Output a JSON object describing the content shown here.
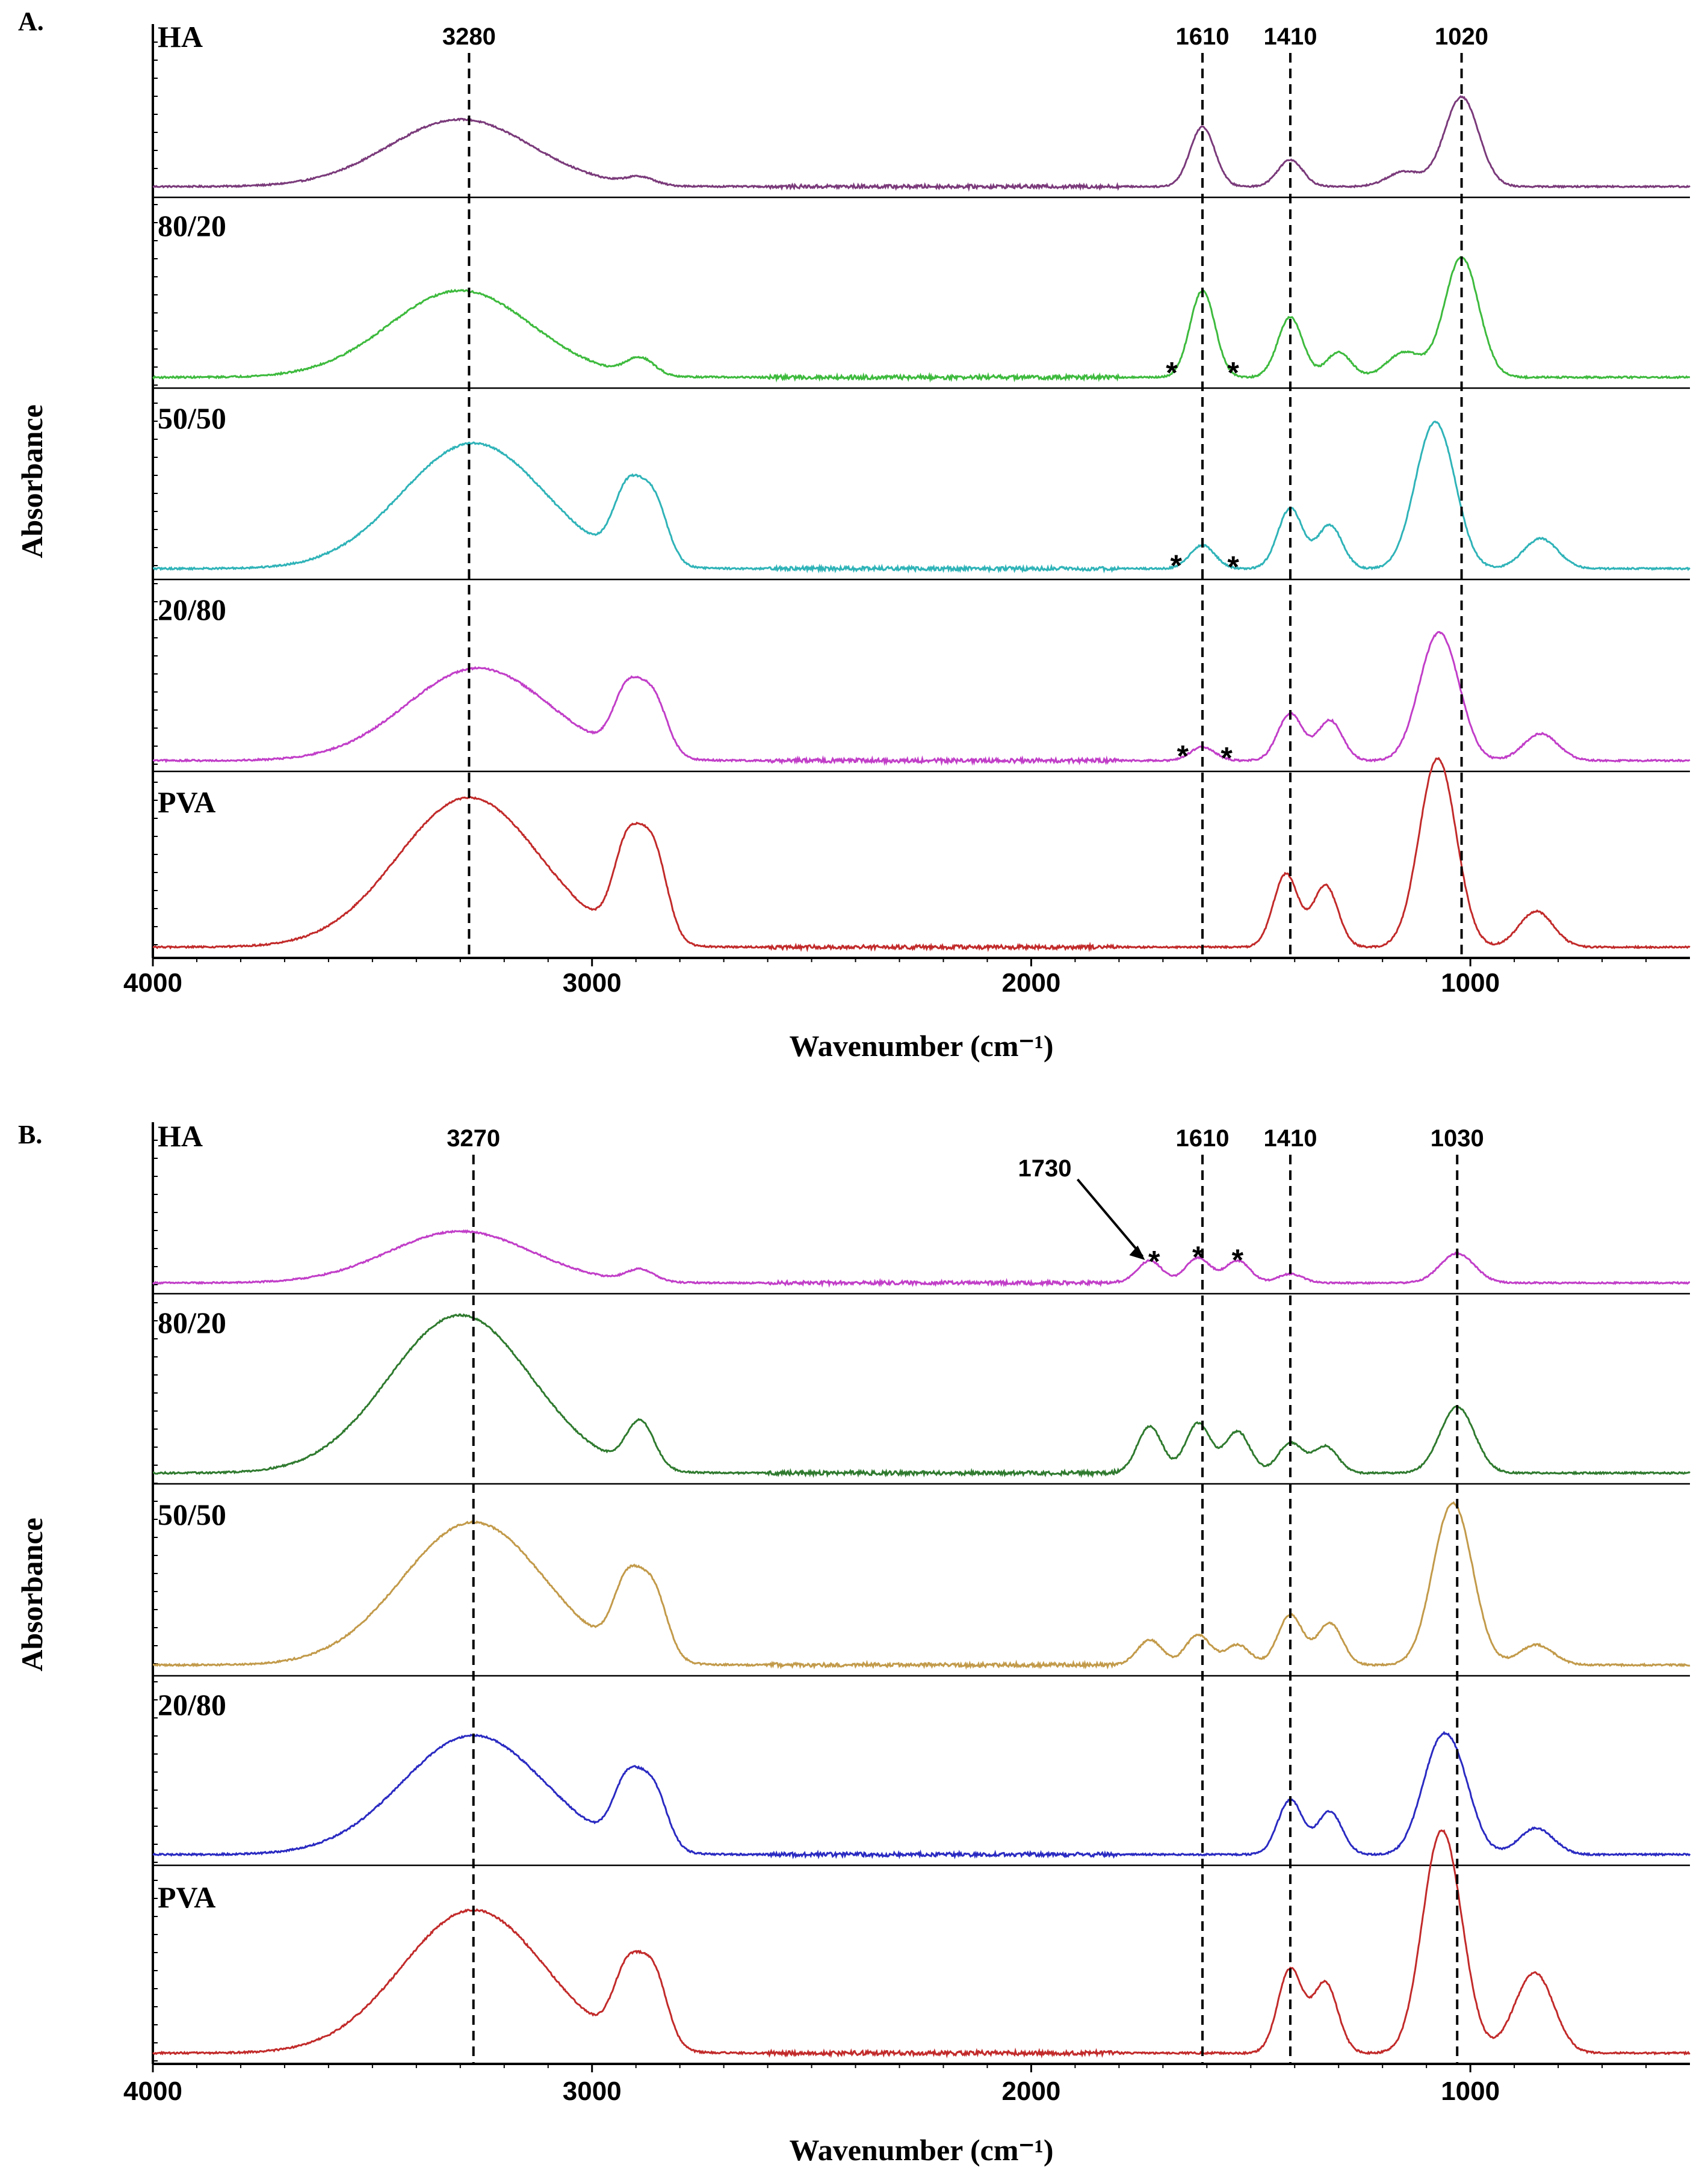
{
  "chart_data": [
    {
      "panel": "A.",
      "type": "line",
      "xlabel": "Wavenumber (cm⁻¹)",
      "ylabel": "Absorbance",
      "xlim": [
        4000,
        500
      ],
      "xticks": [
        4000,
        3000,
        2000,
        1000
      ],
      "xtick_labels": [
        "4000",
        "3000",
        "2000",
        "1000"
      ],
      "reference_lines": [
        {
          "label": "3280",
          "x": 3280
        },
        {
          "label": "1610",
          "x": 1610
        },
        {
          "label": "1410",
          "x": 1410
        },
        {
          "label": "1020",
          "x": 1020
        }
      ],
      "annotations": [
        {
          "text": "*",
          "x": 1680,
          "series": "80/20"
        },
        {
          "text": "*",
          "x": 1540,
          "series": "80/20"
        },
        {
          "text": "*",
          "x": 1670,
          "series": "50/50"
        },
        {
          "text": "*",
          "x": 1540,
          "series": "50/50"
        },
        {
          "text": "*",
          "x": 1655,
          "series": "20/80"
        },
        {
          "text": "*",
          "x": 1555,
          "series": "20/80"
        }
      ],
      "series": [
        {
          "name": "HA",
          "color": "#7a3a7a",
          "peaks": [
            [
              3300,
              0.45
            ],
            [
              2890,
              0.05
            ],
            [
              1610,
              0.4
            ],
            [
              1410,
              0.18
            ],
            [
              1150,
              0.1
            ],
            [
              1020,
              0.6
            ]
          ]
        },
        {
          "name": "80/20",
          "color": "#3dba3d",
          "peaks": [
            [
              3300,
              0.52
            ],
            [
              2890,
              0.1
            ],
            [
              1610,
              0.52
            ],
            [
              1410,
              0.36
            ],
            [
              1300,
              0.15
            ],
            [
              1150,
              0.15
            ],
            [
              1020,
              0.72
            ]
          ]
        },
        {
          "name": "50/50",
          "color": "#2fb3b8",
          "peaks": [
            [
              3270,
              0.75
            ],
            [
              2920,
              0.4
            ],
            [
              2860,
              0.38
            ],
            [
              1610,
              0.14
            ],
            [
              1410,
              0.36
            ],
            [
              1320,
              0.26
            ],
            [
              1100,
              0.5
            ],
            [
              1060,
              0.5
            ],
            [
              840,
              0.18
            ]
          ]
        },
        {
          "name": "20/80",
          "color": "#c13ec8",
          "peaks": [
            [
              3260,
              0.55
            ],
            [
              2920,
              0.36
            ],
            [
              2860,
              0.34
            ],
            [
              1610,
              0.08
            ],
            [
              1410,
              0.28
            ],
            [
              1320,
              0.24
            ],
            [
              1090,
              0.45
            ],
            [
              1050,
              0.42
            ],
            [
              840,
              0.16
            ]
          ]
        },
        {
          "name": "PVA",
          "color": "#c22a2a",
          "peaks": [
            [
              3280,
              0.92
            ],
            [
              2920,
              0.55
            ],
            [
              2860,
              0.55
            ],
            [
              1420,
              0.45
            ],
            [
              1330,
              0.38
            ],
            [
              1090,
              0.6
            ],
            [
              1060,
              0.65
            ],
            [
              850,
              0.22
            ]
          ]
        }
      ]
    },
    {
      "panel": "B.",
      "type": "line",
      "xlabel": "Wavenumber (cm⁻¹)",
      "ylabel": "Absorbance",
      "xlim": [
        4000,
        500
      ],
      "xticks": [
        4000,
        3000,
        2000,
        1000
      ],
      "xtick_labels": [
        "4000",
        "3000",
        "2000",
        "1000"
      ],
      "reference_lines": [
        {
          "label": "3270",
          "x": 3270
        },
        {
          "label": "1610",
          "x": 1610
        },
        {
          "label": "1410",
          "x": 1410
        },
        {
          "label": "1030",
          "x": 1030
        }
      ],
      "annotations": [
        {
          "text": "1730",
          "x": 1730,
          "series": "HA",
          "arrow": true
        },
        {
          "text": "*",
          "x": 1720,
          "series": "HA"
        },
        {
          "text": "*",
          "x": 1620,
          "series": "HA"
        },
        {
          "text": "*",
          "x": 1530,
          "series": "HA"
        }
      ],
      "series": [
        {
          "name": "HA",
          "color": "#c13ec8",
          "peaks": [
            [
              3300,
              0.35
            ],
            [
              2890,
              0.08
            ],
            [
              1730,
              0.15
            ],
            [
              1620,
              0.17
            ],
            [
              1530,
              0.15
            ],
            [
              1410,
              0.06
            ],
            [
              1030,
              0.2
            ]
          ]
        },
        {
          "name": "80/20",
          "color": "#2f7a2f",
          "peaks": [
            [
              3300,
              0.95
            ],
            [
              2890,
              0.28
            ],
            [
              1730,
              0.28
            ],
            [
              1620,
              0.3
            ],
            [
              1530,
              0.25
            ],
            [
              1410,
              0.18
            ],
            [
              1330,
              0.16
            ],
            [
              1030,
              0.4
            ]
          ]
        },
        {
          "name": "50/50",
          "color": "#c29a4a",
          "peaks": [
            [
              3270,
              0.85
            ],
            [
              2920,
              0.42
            ],
            [
              2860,
              0.4
            ],
            [
              1730,
              0.15
            ],
            [
              1620,
              0.18
            ],
            [
              1530,
              0.12
            ],
            [
              1410,
              0.3
            ],
            [
              1320,
              0.25
            ],
            [
              1060,
              0.55
            ],
            [
              1020,
              0.55
            ],
            [
              850,
              0.12
            ]
          ]
        },
        {
          "name": "20/80",
          "color": "#2a2ac2",
          "peaks": [
            [
              3270,
              0.72
            ],
            [
              2920,
              0.38
            ],
            [
              2860,
              0.36
            ],
            [
              1410,
              0.33
            ],
            [
              1320,
              0.26
            ],
            [
              1080,
              0.48
            ],
            [
              1030,
              0.42
            ],
            [
              850,
              0.16
            ]
          ]
        },
        {
          "name": "PVA",
          "color": "#c22a2a",
          "peaks": [
            [
              3270,
              0.82
            ],
            [
              2920,
              0.4
            ],
            [
              2860,
              0.42
            ],
            [
              1410,
              0.48
            ],
            [
              1330,
              0.4
            ],
            [
              1080,
              0.85
            ],
            [
              1040,
              0.6
            ],
            [
              880,
              0.2
            ],
            [
              840,
              0.32
            ]
          ]
        }
      ]
    }
  ]
}
